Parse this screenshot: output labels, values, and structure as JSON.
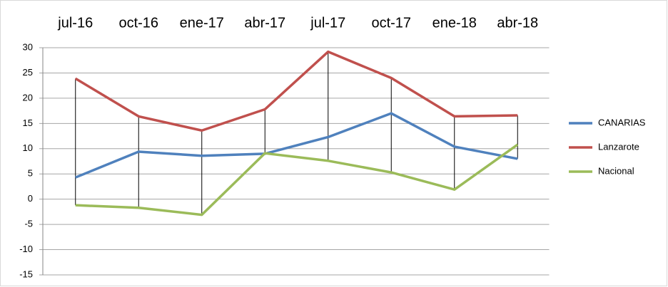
{
  "chart_data": {
    "type": "line",
    "categories": [
      "jul-16",
      "oct-16",
      "ene-17",
      "abr-17",
      "jul-17",
      "oct-17",
      "ene-18",
      "abr-18"
    ],
    "series": [
      {
        "name": "CANARIAS",
        "color": "#4f81bd",
        "values": [
          4.3,
          9.4,
          8.6,
          9.0,
          12.3,
          17.0,
          10.4,
          8.0
        ]
      },
      {
        "name": "Lanzarote",
        "color": "#c0504d",
        "values": [
          23.9,
          16.4,
          13.6,
          17.8,
          29.2,
          24.0,
          16.4,
          16.6
        ]
      },
      {
        "name": "Nacional",
        "color": "#9bbb59",
        "values": [
          -1.2,
          -1.7,
          -3.1,
          9.1,
          7.6,
          5.3,
          1.9,
          10.8
        ]
      }
    ],
    "ylim": [
      -15,
      30
    ],
    "yticks": [
      -15,
      -10,
      -5,
      0,
      5,
      10,
      15,
      20,
      25,
      30
    ],
    "grid": true,
    "high_low_lines": true,
    "legend": "right"
  }
}
